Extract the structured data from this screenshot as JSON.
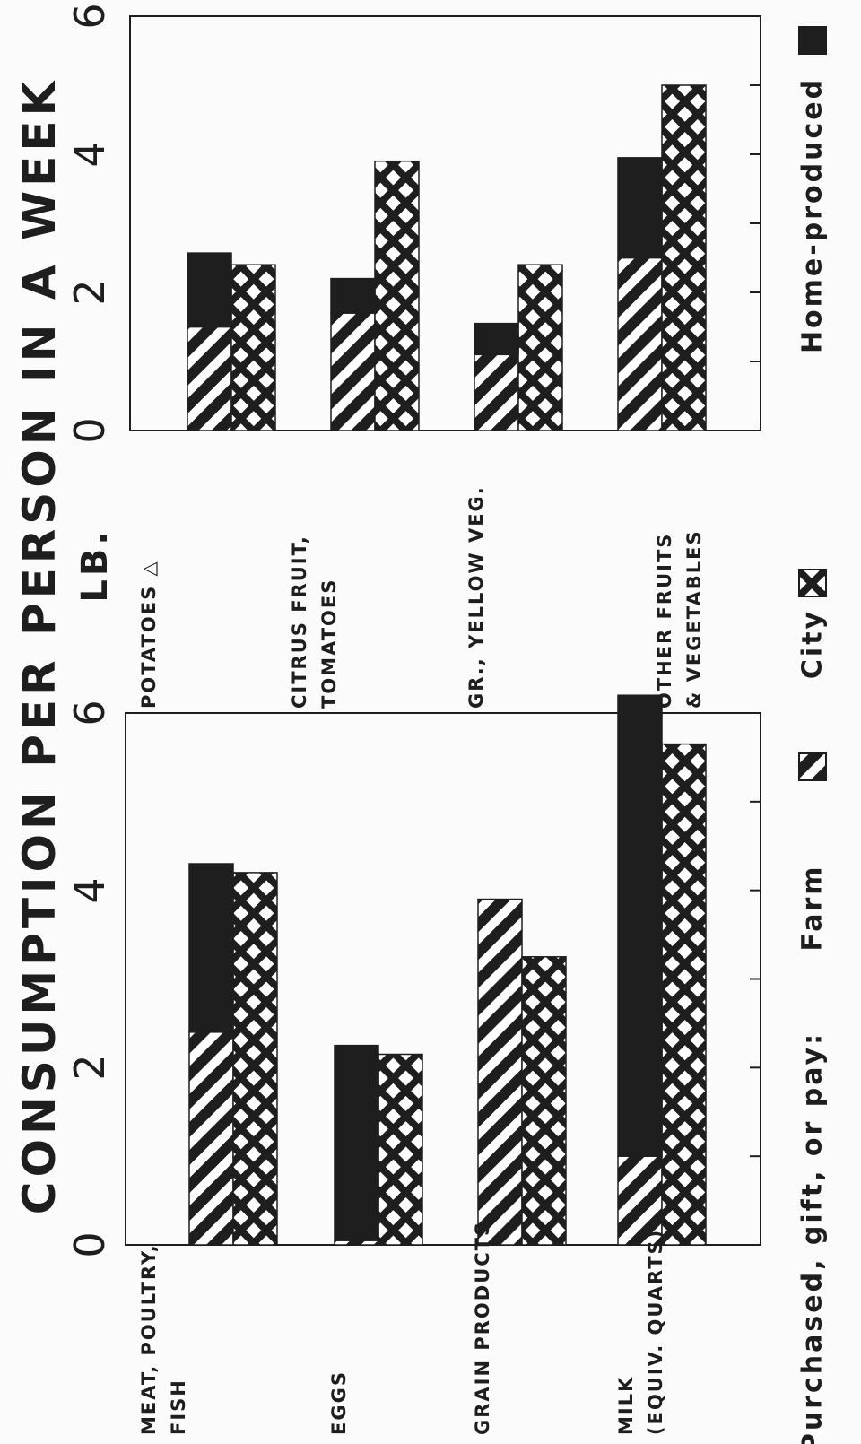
{
  "chart_data": [
    {
      "type": "bar",
      "title": "CONSUMPTION PER PERSON IN A WEEK",
      "ylabel": "LB.",
      "legend_title": "Purchased, gift, or pay:",
      "categories": [
        "MEAT, POULTRY,\nFISH",
        "EGGS",
        "GRAIN PRODUCTS",
        "MILK\n(EQUIV. QUARTS)"
      ],
      "series": [
        {
          "name": "Farm",
          "color": "#1e1e1e",
          "pattern": "hatch",
          "stack": "farm",
          "values": [
            2.4,
            0.05,
            3.9,
            1.0
          ]
        },
        {
          "name": "City",
          "color": "#1e1e1e",
          "pattern": "crosshatch",
          "stack": "city",
          "values": [
            4.2,
            2.15,
            3.25,
            5.65
          ]
        },
        {
          "name": "Home-produced",
          "color": "#1e1e1e",
          "pattern": "solid",
          "stack": "farm",
          "values": [
            1.9,
            2.2,
            0,
            5.2
          ]
        }
      ],
      "ylim": [
        0,
        6
      ],
      "yticks": [
        0,
        2,
        4,
        6
      ],
      "minor_yticks": [
        1,
        3,
        5
      ]
    },
    {
      "type": "bar",
      "categories": [
        "POTATOES △",
        "CITRUS FRUIT,\nTOMATOES",
        "GR., YELLOW VEG.",
        "OTHER FRUITS\n& VEGETABLES"
      ],
      "series": [
        {
          "color": "#1e1e1e",
          "pattern": "hatch",
          "stack": "farm",
          "values": [
            1.5,
            1.7,
            1.1,
            2.5
          ]
        },
        {
          "color": "#1e1e1e",
          "pattern": "crosshatch",
          "stack": "city",
          "values": [
            2.4,
            3.9,
            2.4,
            5.0
          ]
        },
        {
          "color": "#1e1e1e",
          "pattern": "solid",
          "stack": "farm",
          "values": [
            1.07,
            0.5,
            0.45,
            1.45
          ]
        }
      ],
      "ylim": [
        0,
        6
      ],
      "yticks": [
        0,
        2,
        4,
        6
      ],
      "minor_yticks": [
        1,
        3,
        5
      ]
    }
  ]
}
